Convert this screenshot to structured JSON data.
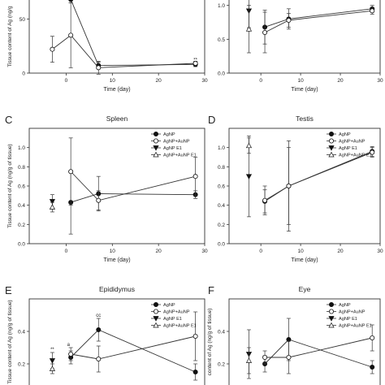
{
  "chart_data": [
    {
      "panel": "A",
      "title": "",
      "type": "line",
      "xlabel": "Time (day)",
      "ylabel": "Tissue content of Ag (ng/g",
      "xlim": [
        -8,
        30
      ],
      "ylim": [
        0,
        75
      ],
      "xticks": [
        0,
        10,
        20,
        30
      ],
      "yticks": [
        0,
        50
      ],
      "series": [
        {
          "name": "AgNP",
          "marker": "circle-filled",
          "points": [
            [
              -3,
              72,
              4
            ],
            [
              1,
              68,
              3
            ],
            [
              7,
              7,
              3
            ],
            [
              28,
              8,
              2
            ]
          ]
        },
        {
          "name": "AgNP+AuNP",
          "marker": "circle-open",
          "points": [
            [
              -3,
              22,
              12
            ],
            [
              1,
              35,
              30
            ],
            [
              7,
              5,
              6
            ],
            [
              28,
              9,
              2
            ]
          ]
        }
      ],
      "annotations": [
        {
          "text": "**",
          "x": 28,
          "y": 11
        }
      ]
    },
    {
      "panel": "B",
      "title": "",
      "type": "line",
      "xlabel": "Time (day)",
      "ylabel": "",
      "xlim": [
        -8,
        30
      ],
      "ylim": [
        0,
        1.2
      ],
      "xticks": [
        0,
        10,
        20,
        30
      ],
      "yticks": [
        0.0,
        0.5,
        1.0
      ],
      "yticklabels": [
        "0.0",
        "0.5",
        "1.0"
      ],
      "series": [
        {
          "name": "AgNP",
          "marker": "circle-filled",
          "points": [
            [
              1,
              0.68,
              0.25
            ],
            [
              7,
              0.8,
              0.15
            ],
            [
              28,
              0.95,
              0.05
            ]
          ]
        },
        {
          "name": "AgNP+AuNP",
          "marker": "circle-open",
          "points": [
            [
              1,
              0.6,
              0.3
            ],
            [
              7,
              0.78,
              0.1
            ],
            [
              28,
              0.92,
              0.05
            ]
          ]
        },
        {
          "name": "AgNP E1",
          "marker": "triangle-down-filled",
          "points": [
            [
              -3,
              0.92,
              0.25
            ]
          ]
        },
        {
          "name": "AgNP+AuNP E1",
          "marker": "triangle-up-open",
          "points": [
            [
              -3,
              0.65,
              0.35
            ]
          ]
        }
      ]
    },
    {
      "panel": "C",
      "title": "Spleen",
      "type": "line",
      "xlabel": "Time (day)",
      "ylabel": "Tissue content of Ag (ng/g of tissue)",
      "xlim": [
        -8,
        30
      ],
      "ylim": [
        0,
        1.2
      ],
      "xticks": [
        0,
        10,
        20,
        30
      ],
      "yticks": [
        0.0,
        0.2,
        0.4,
        0.6,
        0.8,
        1.0
      ],
      "yticklabels": [
        "0.0",
        "0.2",
        "0.4",
        "0.6",
        "0.8",
        "1.0"
      ],
      "legend": [
        "AgNP",
        "AgNP+AuNP",
        "AgNP E1",
        "AgNP+AuNP E1"
      ],
      "series": [
        {
          "name": "AgNP",
          "marker": "circle-filled",
          "points": [
            [
              1,
              0.43,
              0.33
            ],
            [
              7,
              0.52,
              0.18
            ],
            [
              28,
              0.51,
              0.04
            ]
          ]
        },
        {
          "name": "AgNP+AuNP",
          "marker": "circle-open",
          "points": [
            [
              1,
              0.75,
              0.35
            ],
            [
              7,
              0.45,
              0.1
            ],
            [
              28,
              0.7,
              0.2
            ]
          ]
        },
        {
          "name": "AgNP E1",
          "marker": "triangle-down-filled",
          "points": [
            [
              -3,
              0.44,
              0.07
            ]
          ]
        },
        {
          "name": "AgNP+AuNP E1",
          "marker": "triangle-up-open",
          "points": [
            [
              -3,
              0.38,
              0.05
            ]
          ]
        }
      ]
    },
    {
      "panel": "D",
      "title": "Testis",
      "type": "line",
      "xlabel": "Time (day)",
      "ylabel": "",
      "xlim": [
        -8,
        30
      ],
      "ylim": [
        0,
        1.2
      ],
      "xticks": [
        0,
        10,
        20,
        30
      ],
      "yticks": [
        0.0,
        0.2,
        0.4,
        0.6,
        0.8,
        1.0
      ],
      "yticklabels": [
        "0.0",
        "0.2",
        "0.4",
        "0.6",
        "0.8",
        "1.0"
      ],
      "legend": [
        "AgNP",
        "AgNP+AuNP",
        "AgNP E1",
        "AgNP+AuNP E1"
      ],
      "series": [
        {
          "name": "AgNP",
          "marker": "circle-filled",
          "points": [
            [
              1,
              0.44,
              0.12
            ],
            [
              7,
              0.6,
              0.47
            ],
            [
              28,
              0.96,
              0.05
            ]
          ]
        },
        {
          "name": "AgNP+AuNP",
          "marker": "circle-open",
          "points": [
            [
              1,
              0.45,
              0.15
            ],
            [
              7,
              0.6,
              0.4
            ],
            [
              28,
              0.95,
              0.05
            ]
          ]
        },
        {
          "name": "AgNP E1",
          "marker": "triangle-down-filled",
          "points": [
            [
              -3,
              0.7,
              0.42
            ]
          ]
        },
        {
          "name": "AgNP+AuNP E1",
          "marker": "triangle-up-open",
          "points": [
            [
              -3,
              1.02,
              0.08
            ]
          ]
        }
      ]
    },
    {
      "panel": "E",
      "title": "Epididymus",
      "type": "line",
      "xlabel": "",
      "ylabel": "Tissue content of Ag (ng/g of tissue)",
      "xlim": [
        -8,
        30
      ],
      "ylim": [
        0,
        0.6
      ],
      "xticks": [],
      "yticks": [
        0.0,
        0.2,
        0.4
      ],
      "yticklabels": [
        "",
        "0.2",
        "0.4"
      ],
      "legend": [
        "AgNP",
        "AgNP+AuNP",
        "AgNP E1",
        "AgNP+AuNP E1"
      ],
      "series": [
        {
          "name": "AgNP",
          "marker": "circle-filled",
          "points": [
            [
              1,
              0.24,
              0.04
            ],
            [
              7,
              0.41,
              0.07
            ],
            [
              28,
              0.15,
              0.05
            ]
          ]
        },
        {
          "name": "AgNP+AuNP",
          "marker": "circle-open",
          "points": [
            [
              1,
              0.26,
              0.04
            ],
            [
              7,
              0.23,
              0.08
            ],
            [
              28,
              0.37,
              0.15
            ]
          ]
        },
        {
          "name": "AgNP E1",
          "marker": "triangle-down-filled",
          "points": [
            [
              -3,
              0.22,
              0.05
            ]
          ]
        },
        {
          "name": "AgNP+AuNP E1",
          "marker": "triangle-up-open",
          "points": [
            [
              -3,
              0.17,
              0.03
            ]
          ]
        }
      ],
      "annotations": [
        {
          "text": "a",
          "x": 0.5,
          "y": 0.31
        },
        {
          "text": "cc",
          "x": 7,
          "y": 0.49
        },
        {
          "text": "**",
          "x": -3,
          "y": 0.28
        }
      ]
    },
    {
      "panel": "F",
      "title": "Eye",
      "type": "line",
      "xlabel": "",
      "ylabel": "content of Ag (ng/g of tissue)",
      "xlim": [
        -8,
        30
      ],
      "ylim": [
        0,
        0.6
      ],
      "xticks": [],
      "yticks": [
        0.0,
        0.2,
        0.4
      ],
      "yticklabels": [
        "",
        "0.2",
        "0.4"
      ],
      "legend": [
        "AgNP",
        "AgNP+AuNP",
        "AgNP E1",
        "AgNP+AuNP E1"
      ],
      "series": [
        {
          "name": "AgNP",
          "marker": "circle-filled",
          "points": [
            [
              1,
              0.2,
              0.05
            ],
            [
              7,
              0.35,
              0.13
            ],
            [
              28,
              0.18,
              0.04
            ]
          ]
        },
        {
          "name": "AgNP+AuNP",
          "marker": "circle-open",
          "points": [
            [
              1,
              0.24,
              0.04
            ],
            [
              7,
              0.24,
              0.1
            ],
            [
              28,
              0.36,
              0.08
            ]
          ]
        },
        {
          "name": "AgNP E1",
          "marker": "triangle-down-filled",
          "points": [
            [
              -3,
              0.26,
              0.15
            ]
          ]
        },
        {
          "name": "AgNP+AuNP E1",
          "marker": "triangle-up-open",
          "points": [
            [
              -3,
              0.22,
              0.08
            ]
          ]
        }
      ]
    }
  ]
}
